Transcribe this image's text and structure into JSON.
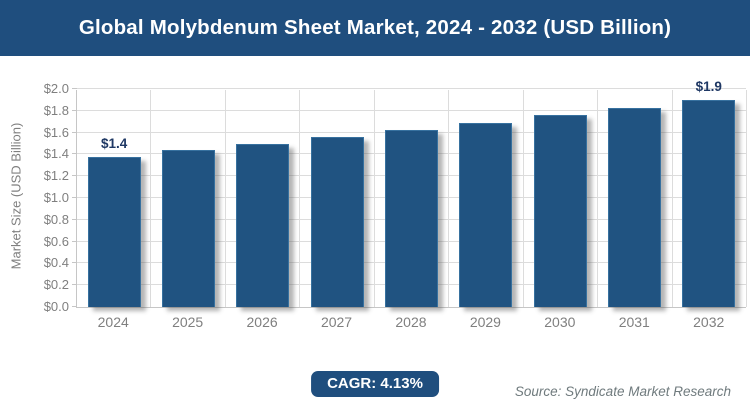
{
  "header": {
    "title": "Global Molybdenum Sheet Market, 2024 - 2032 (USD Billion)"
  },
  "chart_data": {
    "type": "bar",
    "title": "Global Molybdenum Sheet Market, 2024 - 2032 (USD Billion)",
    "categories": [
      "2024",
      "2025",
      "2026",
      "2027",
      "2028",
      "2029",
      "2030",
      "2031",
      "2032"
    ],
    "values": [
      1.38,
      1.44,
      1.5,
      1.56,
      1.62,
      1.69,
      1.76,
      1.83,
      1.9
    ],
    "bar_labels": [
      "$1.4",
      "",
      "",
      "",
      "",
      "",
      "",
      "",
      "$1.9"
    ],
    "xlabel": "",
    "ylabel": "Market Size (USD Billion)",
    "ylim": [
      0,
      2.0
    ],
    "y_ticks": [
      "$0.0",
      "$0.2",
      "$0.4",
      "$0.6",
      "$0.8",
      "$1.0",
      "$1.2",
      "$1.4",
      "$1.6",
      "$1.8",
      "$2.0"
    ],
    "grid": true,
    "legend": "none",
    "cagr": "4.13%"
  },
  "footer": {
    "cagr_label": "CAGR: 4.13%",
    "source": "Source: Syndicate Market Research"
  },
  "colors": {
    "header_bg": "#1F4E7E",
    "bar_fill": "#205381",
    "bar_border": "#37719F",
    "bar_label": "#1F3864",
    "axis_text": "#7F7F7F",
    "gridline": "#DCDCDC",
    "axis_line": "#C6C6C6",
    "badge_bg": "#1F4E7E",
    "source_text": "#6F7A7D"
  }
}
